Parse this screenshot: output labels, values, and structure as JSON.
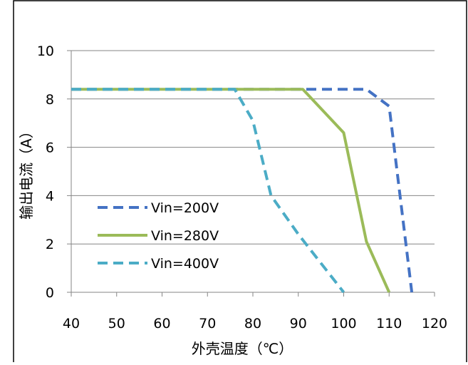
{
  "chart_data": {
    "type": "line",
    "xlabel": "外壳温度（℃）",
    "ylabel": "输出电流（A）",
    "xlim": [
      40,
      120
    ],
    "ylim": [
      0,
      10
    ],
    "xticks": [
      40,
      50,
      60,
      70,
      80,
      90,
      100,
      110,
      120
    ],
    "yticks": [
      0,
      2,
      4,
      6,
      8,
      10
    ],
    "grid": "horizontal",
    "legend_position": "left",
    "series": [
      {
        "name": "Vin=200V",
        "color": "#4472C4",
        "style": "dashed",
        "points": [
          [
            40,
            8.4
          ],
          [
            105,
            8.4
          ],
          [
            110,
            7.7
          ],
          [
            115,
            0
          ]
        ]
      },
      {
        "name": "Vin=280V",
        "color": "#9BBB59",
        "style": "solid",
        "points": [
          [
            40,
            8.4
          ],
          [
            91,
            8.4
          ],
          [
            100,
            6.6
          ],
          [
            105,
            2.1
          ],
          [
            110,
            0
          ]
        ]
      },
      {
        "name": "Vin=400V",
        "color": "#4BACC6",
        "style": "dashed",
        "points": [
          [
            40,
            8.4
          ],
          [
            76,
            8.4
          ],
          [
            80,
            7.1
          ],
          [
            84,
            4.0
          ],
          [
            90,
            2.4
          ],
          [
            100,
            0
          ]
        ]
      }
    ]
  }
}
